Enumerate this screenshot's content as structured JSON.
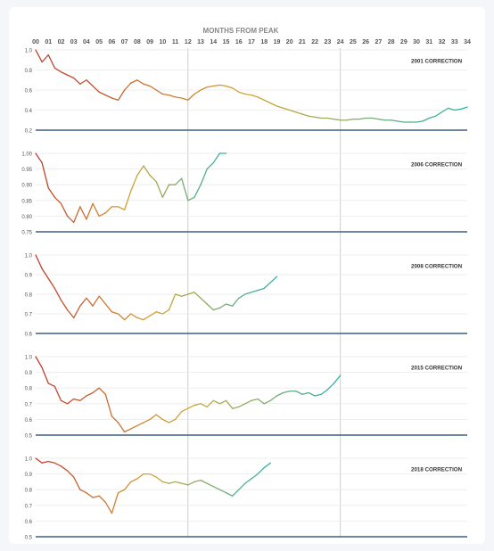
{
  "header": {
    "title": "MONTHS FROM PEAK"
  },
  "colors": {
    "baseline": "#3b5f86",
    "vline": "#cfcfcf",
    "grid": "#e9e9e9",
    "text": "#555555",
    "title": "#888888",
    "low": "#c0392b",
    "mid": "#d4a535",
    "high": "#2ab3a5"
  },
  "x_ticks": [
    "00",
    "01",
    "02",
    "03",
    "04",
    "05",
    "06",
    "07",
    "08",
    "09",
    "10",
    "11",
    "12",
    "13",
    "14",
    "15",
    "16",
    "17",
    "18",
    "19",
    "20",
    "21",
    "22",
    "23",
    "24",
    "25",
    "26",
    "27",
    "28",
    "29",
    "30",
    "31",
    "32",
    "33",
    "34"
  ],
  "chart_data": [
    {
      "type": "line",
      "legend": "2001 CORRECTION",
      "legend_position": "top-right",
      "y_ticks": [
        "1.0",
        "0.8",
        "0.6",
        "0.4",
        "0.2"
      ],
      "ylim": [
        0.2,
        1.0
      ],
      "x": [
        0,
        0.5,
        1,
        1.5,
        2,
        2.5,
        3,
        3.5,
        4,
        4.5,
        5,
        5.5,
        6,
        6.5,
        7,
        7.5,
        8,
        8.5,
        9,
        9.5,
        10,
        10.5,
        11,
        11.5,
        12,
        12.5,
        13,
        13.5,
        14,
        14.5,
        15,
        15.5,
        16,
        16.5,
        17,
        17.5,
        18,
        18.5,
        19,
        19.5,
        20,
        20.5,
        21,
        21.5,
        22,
        22.5,
        23,
        23.5,
        24,
        24.5,
        25,
        25.5,
        26,
        26.5,
        27,
        27.5,
        28,
        28.5,
        29,
        29.5,
        30,
        30.5,
        31,
        31.5,
        32,
        32.5,
        33,
        33.5,
        34
      ],
      "values": [
        1.0,
        0.88,
        0.95,
        0.82,
        0.78,
        0.75,
        0.72,
        0.66,
        0.7,
        0.64,
        0.58,
        0.55,
        0.52,
        0.5,
        0.6,
        0.67,
        0.7,
        0.66,
        0.64,
        0.6,
        0.56,
        0.55,
        0.53,
        0.52,
        0.5,
        0.56,
        0.6,
        0.63,
        0.64,
        0.65,
        0.64,
        0.62,
        0.58,
        0.56,
        0.55,
        0.53,
        0.5,
        0.47,
        0.44,
        0.42,
        0.4,
        0.38,
        0.36,
        0.34,
        0.33,
        0.32,
        0.32,
        0.31,
        0.3,
        0.3,
        0.31,
        0.31,
        0.32,
        0.32,
        0.31,
        0.3,
        0.3,
        0.29,
        0.28,
        0.28,
        0.28,
        0.29,
        0.32,
        0.34,
        0.38,
        0.42,
        0.4,
        0.41,
        0.43
      ]
    },
    {
      "type": "line",
      "legend": "2006 CORRECTION",
      "legend_position": "top-right",
      "y_ticks": [
        "1.00",
        "0.95",
        "0.90",
        "0.85",
        "0.80",
        "0.75"
      ],
      "ylim": [
        0.75,
        1.0
      ],
      "x": [
        0,
        0.5,
        1,
        1.5,
        2,
        2.5,
        3,
        3.5,
        4,
        4.5,
        5,
        5.5,
        6,
        6.5,
        7,
        7.5,
        8,
        8.5,
        9,
        9.5,
        10,
        10.5,
        11,
        11.5,
        12,
        12.5,
        13,
        13.5,
        14,
        14.5,
        15
      ],
      "values": [
        1.0,
        0.97,
        0.89,
        0.86,
        0.84,
        0.8,
        0.78,
        0.83,
        0.79,
        0.84,
        0.8,
        0.81,
        0.83,
        0.83,
        0.82,
        0.88,
        0.93,
        0.96,
        0.93,
        0.91,
        0.86,
        0.9,
        0.9,
        0.92,
        0.85,
        0.86,
        0.9,
        0.95,
        0.97,
        1.0,
        1.0
      ]
    },
    {
      "type": "line",
      "legend": "2008 CORRECTION",
      "legend_position": "top-right",
      "y_ticks": [
        "1.0",
        "0.9",
        "0.8",
        "0.7",
        "0.6"
      ],
      "ylim": [
        0.6,
        1.0
      ],
      "x": [
        0,
        0.5,
        1,
        1.5,
        2,
        2.5,
        3,
        3.5,
        4,
        4.5,
        5,
        5.5,
        6,
        6.5,
        7,
        7.5,
        8,
        8.5,
        9,
        9.5,
        10,
        10.5,
        11,
        11.5,
        12,
        12.5,
        13,
        13.5,
        14,
        14.5,
        15,
        15.5,
        16,
        16.5,
        17,
        17.5,
        18,
        18.5,
        19
      ],
      "values": [
        1.0,
        0.93,
        0.88,
        0.83,
        0.77,
        0.72,
        0.68,
        0.74,
        0.78,
        0.74,
        0.79,
        0.75,
        0.71,
        0.7,
        0.67,
        0.7,
        0.68,
        0.67,
        0.69,
        0.71,
        0.7,
        0.72,
        0.8,
        0.79,
        0.8,
        0.81,
        0.78,
        0.75,
        0.72,
        0.73,
        0.75,
        0.74,
        0.78,
        0.8,
        0.81,
        0.82,
        0.83,
        0.86,
        0.89
      ]
    },
    {
      "type": "line",
      "legend": "2015 CORRECTION",
      "legend_position": "top-right",
      "y_ticks": [
        "1.0",
        "0.9",
        "0.8",
        "0.7",
        "0.6",
        "0.5"
      ],
      "ylim": [
        0.5,
        1.0
      ],
      "x": [
        0,
        0.5,
        1,
        1.5,
        2,
        2.5,
        3,
        3.5,
        4,
        4.5,
        5,
        5.5,
        6,
        6.5,
        7,
        7.5,
        8,
        8.5,
        9,
        9.5,
        10,
        10.5,
        11,
        11.5,
        12,
        12.5,
        13,
        13.5,
        14,
        14.5,
        15,
        15.5,
        16,
        16.5,
        17,
        17.5,
        18,
        18.5,
        19,
        19.5,
        20,
        20.5,
        21,
        21.5,
        22,
        22.5,
        23,
        23.5,
        24
      ],
      "values": [
        1.0,
        0.93,
        0.83,
        0.81,
        0.72,
        0.7,
        0.73,
        0.72,
        0.75,
        0.77,
        0.8,
        0.76,
        0.62,
        0.58,
        0.52,
        0.54,
        0.56,
        0.58,
        0.6,
        0.63,
        0.6,
        0.58,
        0.6,
        0.65,
        0.67,
        0.69,
        0.7,
        0.68,
        0.72,
        0.7,
        0.72,
        0.67,
        0.68,
        0.7,
        0.72,
        0.73,
        0.7,
        0.72,
        0.75,
        0.77,
        0.78,
        0.78,
        0.76,
        0.77,
        0.75,
        0.76,
        0.79,
        0.83,
        0.88
      ]
    },
    {
      "type": "line",
      "legend": "2018 CORRECTION",
      "legend_position": "top-right",
      "y_ticks": [
        "1.0",
        "0.9",
        "0.8",
        "0.7",
        "0.6",
        "0.5"
      ],
      "ylim": [
        0.5,
        1.0
      ],
      "x": [
        0,
        0.5,
        1,
        1.5,
        2,
        2.5,
        3,
        3.5,
        4,
        4.5,
        5,
        5.5,
        6,
        6.5,
        7,
        7.5,
        8,
        8.5,
        9,
        9.5,
        10,
        10.5,
        11,
        11.5,
        12,
        12.5,
        13,
        13.5,
        14,
        14.5,
        15,
        15.5,
        16,
        16.5,
        17,
        17.5,
        18,
        18.5
      ],
      "values": [
        1.0,
        0.97,
        0.98,
        0.97,
        0.95,
        0.92,
        0.88,
        0.8,
        0.78,
        0.75,
        0.76,
        0.72,
        0.65,
        0.78,
        0.8,
        0.85,
        0.87,
        0.9,
        0.9,
        0.88,
        0.85,
        0.84,
        0.85,
        0.84,
        0.83,
        0.85,
        0.86,
        0.84,
        0.82,
        0.8,
        0.78,
        0.76,
        0.8,
        0.84,
        0.87,
        0.9,
        0.94,
        0.97
      ]
    }
  ]
}
